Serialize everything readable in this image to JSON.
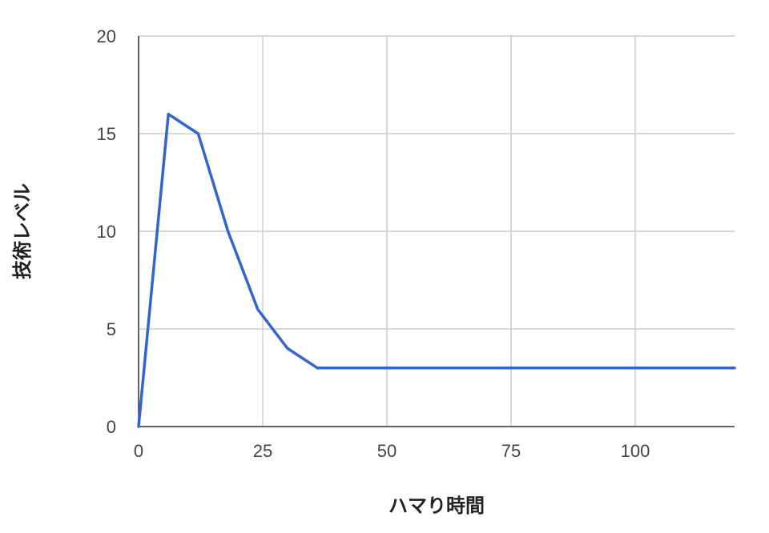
{
  "chart_data": {
    "type": "line",
    "title": "",
    "xlabel": "ハマり時間",
    "ylabel": "技術レベル",
    "xlim": [
      0,
      120
    ],
    "ylim": [
      0,
      20
    ],
    "x_ticks": [
      0,
      25,
      50,
      75,
      100
    ],
    "y_ticks": [
      0,
      5,
      10,
      15,
      20
    ],
    "grid": true,
    "legend": "none",
    "series": [
      {
        "color": "#3366cc",
        "points": [
          [
            0,
            0
          ],
          [
            6,
            16
          ],
          [
            12,
            15
          ],
          [
            18,
            10
          ],
          [
            24,
            6
          ],
          [
            30,
            4
          ],
          [
            36,
            3
          ],
          [
            120,
            3
          ]
        ]
      }
    ]
  }
}
